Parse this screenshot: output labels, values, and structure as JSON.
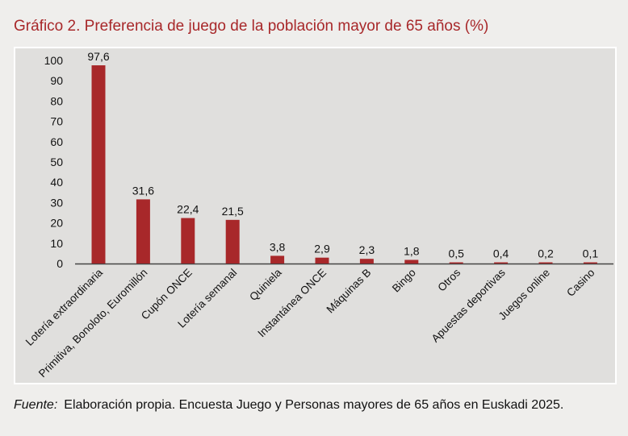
{
  "title": "Gráfico 2.  Preferencia de juego de la población mayor de 65 años (%)",
  "source": {
    "label": "Fuente:",
    "text": "Elaboración propia. Encuesta Juego y Personas mayores de 65 años en Euskadi 2025."
  },
  "colors": {
    "bar": "#a8282a",
    "title": "#a8282a",
    "plot_bg": "#e0dfdd"
  },
  "chart_data": {
    "type": "bar",
    "title": "Gráfico 2.  Preferencia de juego de la población mayor de 65 años (%)",
    "categories": [
      "Lotería extraordinaria",
      "Primitiva, Bonoloto, Euromillón",
      "Cupón ONCE",
      "Lotería semanal",
      "Quiniela",
      "Instantánea ONCE",
      "Máquinas B",
      "Bingo",
      "Otros",
      "Apuestas deportivas",
      "Juegos online",
      "Casino"
    ],
    "values": [
      97.6,
      31.6,
      22.4,
      21.5,
      3.8,
      2.9,
      2.3,
      1.8,
      0.5,
      0.4,
      0.2,
      0.1
    ],
    "data_labels": [
      "97,6",
      "31,6",
      "22,4",
      "21,5",
      "3,8",
      "2,9",
      "2,3",
      "1,8",
      "0,5",
      "0,4",
      "0,2",
      "0,1"
    ],
    "yticks": [
      0,
      10,
      20,
      30,
      40,
      50,
      60,
      70,
      80,
      90,
      100
    ],
    "ylim": [
      0,
      100
    ],
    "grid": false,
    "legend": "none"
  }
}
